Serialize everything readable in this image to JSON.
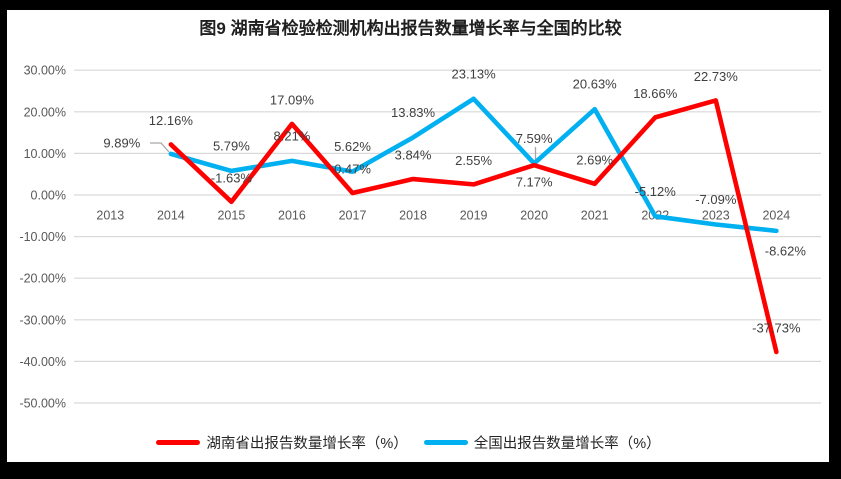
{
  "window": {
    "background": "#ffffff",
    "frame_color": "#000000"
  },
  "chart_data": {
    "type": "line",
    "title": "图9 湖南省检验检测机构出报告数量增长率与全国的比较",
    "categories": [
      "2013",
      "2014",
      "2015",
      "2016",
      "2017",
      "2018",
      "2019",
      "2020",
      "2021",
      "2022",
      "2023",
      "2024"
    ],
    "yticks": [
      "30.00%",
      "20.00%",
      "10.00%",
      "0.00%",
      "-10.00%",
      "-20.00%",
      "-30.00%",
      "-40.00%",
      "-50.00%"
    ],
    "ylim": [
      -50,
      30
    ],
    "grid": "horizontal",
    "legend_position": "bottom",
    "axis_color": "#595959",
    "label_color": "#404040",
    "gridline_color": "#D9D9D9",
    "leader_color": "#A6A6A6",
    "series": [
      {
        "name": "湖南省出报告数量增长率（%）",
        "color": "#FF0000",
        "values": [
          null,
          12.16,
          -1.63,
          17.09,
          0.47,
          3.84,
          2.55,
          7.17,
          2.69,
          18.66,
          22.73,
          -37.73
        ],
        "labels": [
          null,
          "12.16%",
          "-1.63%",
          "17.09%",
          "0.47%",
          "3.84%",
          "2.55%",
          "7.17%",
          "2.69%",
          "18.66%",
          "22.73%",
          "-37.73%"
        ]
      },
      {
        "name": "全国出报告数量增长率（%）",
        "color": "#00B0F0",
        "values": [
          null,
          9.89,
          5.79,
          8.21,
          5.62,
          13.83,
          23.13,
          7.59,
          20.63,
          -5.12,
          -7.09,
          -8.62
        ],
        "labels": [
          null,
          "9.89%",
          "5.79%",
          "8.21%",
          "5.62%",
          "13.83%",
          "23.13%",
          "7.59%",
          "20.63%",
          "-5.12%",
          "-7.09%",
          "-8.62%"
        ]
      }
    ]
  }
}
